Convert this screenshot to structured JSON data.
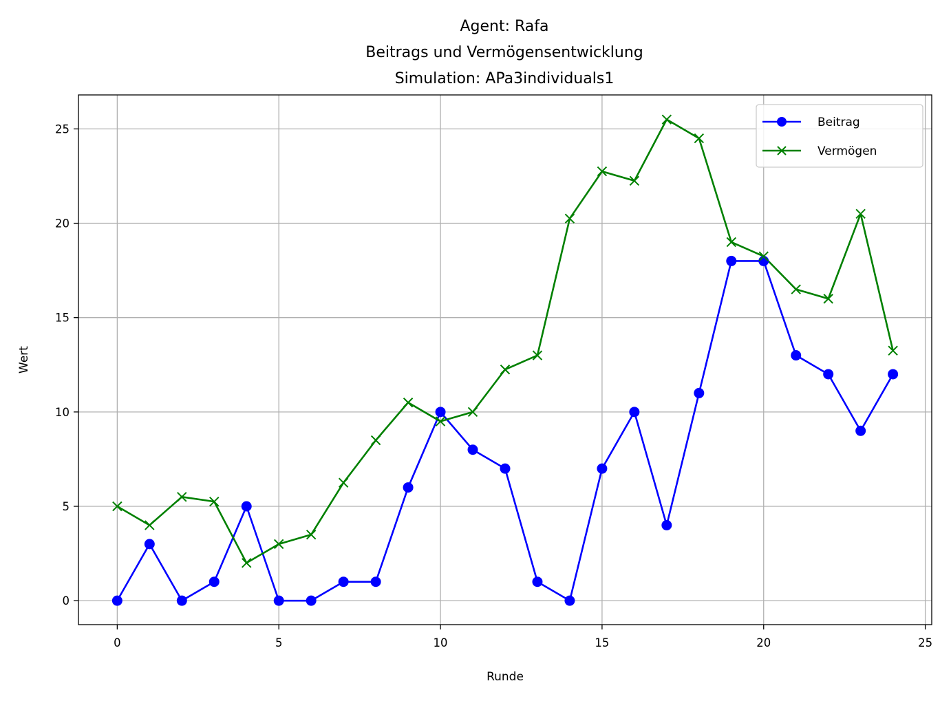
{
  "chart_data": {
    "type": "line",
    "title_lines": [
      "Agent: Rafa",
      "Beitrags und Vermögensentwicklung",
      "Simulation: APa3individuals1"
    ],
    "xlabel": "Runde",
    "ylabel": "Wert",
    "xlim": [
      -1.2,
      25.2
    ],
    "ylim": [
      -1.27,
      26.8
    ],
    "xticks": [
      0,
      5,
      10,
      15,
      20,
      25
    ],
    "yticks": [
      0,
      5,
      10,
      15,
      20,
      25
    ],
    "grid": true,
    "legend_position": "top-right",
    "x": [
      0,
      1,
      2,
      3,
      4,
      5,
      6,
      7,
      8,
      9,
      10,
      11,
      12,
      13,
      14,
      15,
      16,
      17,
      18,
      19,
      20,
      21,
      22,
      23,
      24
    ],
    "series": [
      {
        "name": "Beitrag",
        "color": "#0000ff",
        "marker": "circle",
        "values": [
          0,
          3,
          0,
          1,
          5,
          0,
          0,
          1,
          1,
          6,
          10,
          8,
          7,
          1,
          0,
          7,
          10,
          4,
          11,
          18,
          18,
          13,
          12,
          9,
          12
        ]
      },
      {
        "name": "Vermögen",
        "color": "#008000",
        "marker": "x",
        "values": [
          5,
          4,
          5.5,
          5.25,
          2,
          3,
          3.5,
          6.25,
          8.5,
          10.5,
          9.5,
          10,
          12.25,
          13,
          20.25,
          22.75,
          22.25,
          25.5,
          24.5,
          19,
          18.25,
          16.5,
          16,
          20.5,
          13.25
        ]
      }
    ]
  }
}
